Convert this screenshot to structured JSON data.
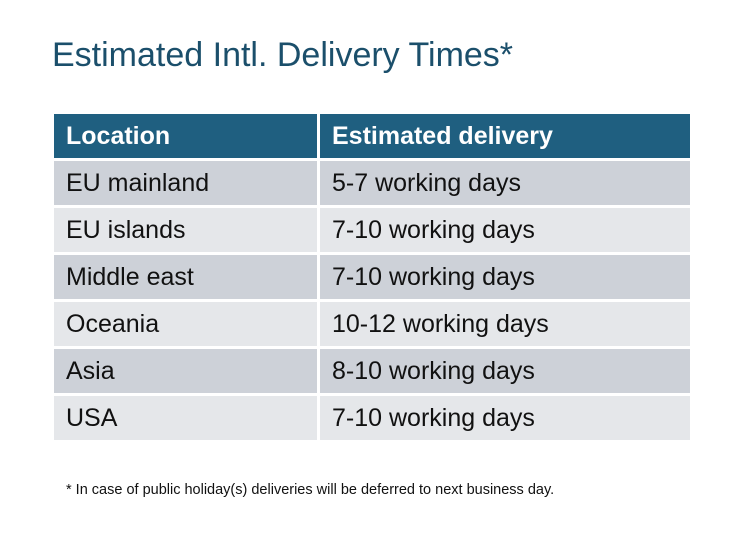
{
  "title": "Estimated Intl. Delivery Times*",
  "table": {
    "headers": [
      "Location",
      "Estimated delivery"
    ],
    "rows": [
      [
        "EU mainland",
        "5-7 working days"
      ],
      [
        "EU islands",
        "7-10 working days"
      ],
      [
        "Middle east",
        "7-10 working days"
      ],
      [
        "Oceania",
        "10-12 working days"
      ],
      [
        "Asia",
        "8-10 working days"
      ],
      [
        "USA",
        "7-10 working days"
      ]
    ]
  },
  "footnote": "* In case of public holiday(s) deliveries will be deferred to next business day.",
  "colors": {
    "header": "#1F5F80",
    "title": "#1B4F6B",
    "row_dark": "#CDD1D8",
    "row_light": "#E5E7EA"
  }
}
